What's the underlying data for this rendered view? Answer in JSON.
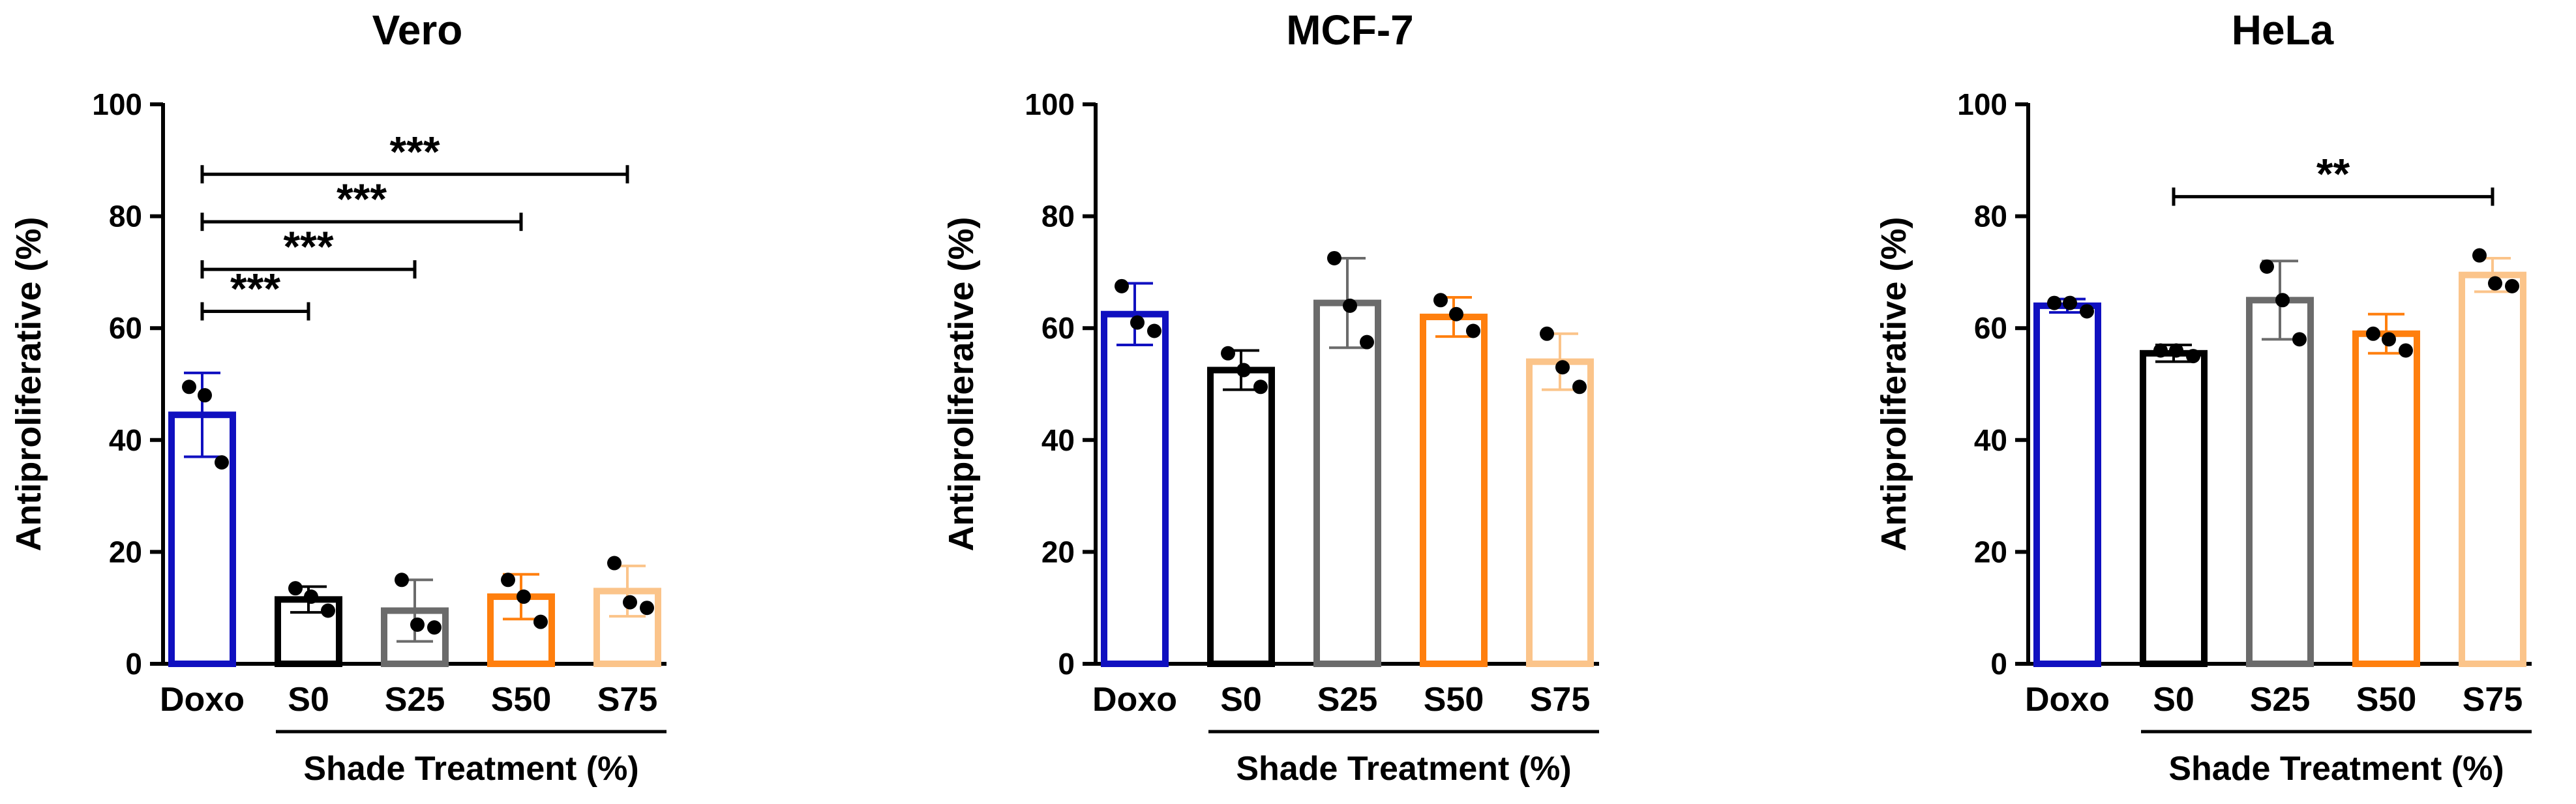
{
  "chart_data": [
    {
      "type": "bar",
      "title": "Vero",
      "ylabel": "Antiproliferative (%)",
      "xlabel": "Shade Treatment (%)",
      "ylim": [
        0,
        100
      ],
      "yticks": [
        "0",
        "20",
        "40",
        "60",
        "80",
        "100"
      ],
      "categories": [
        "Doxo",
        "S0",
        "S25",
        "S50",
        "S75"
      ],
      "colors": [
        "#1010c0",
        "#000000",
        "#6b6b6b",
        "#ff7f0e",
        "#fbc48a"
      ],
      "values": [
        44.5,
        11.5,
        9.5,
        12,
        13
      ],
      "errors": [
        7.5,
        2.3,
        5.5,
        4,
        4.5
      ],
      "points": [
        [
          49.5,
          48,
          36
        ],
        [
          13.5,
          12,
          9.5
        ],
        [
          15,
          7,
          6.5
        ],
        [
          15,
          12,
          7.5
        ],
        [
          18,
          11,
          10
        ]
      ],
      "significance": [
        {
          "from": 0,
          "to": 1,
          "label": "***",
          "y": 63
        },
        {
          "from": 0,
          "to": 2,
          "label": "***",
          "y": 70.5
        },
        {
          "from": 0,
          "to": 3,
          "label": "***",
          "y": 79
        },
        {
          "from": 0,
          "to": 4,
          "label": "***",
          "y": 87.5
        }
      ]
    },
    {
      "type": "bar",
      "title": "MCF-7",
      "ylabel": "Antiproliferative (%)",
      "xlabel": "Shade Treatment (%)",
      "ylim": [
        0,
        100
      ],
      "yticks": [
        "0",
        "20",
        "40",
        "60",
        "80",
        "100"
      ],
      "categories": [
        "Doxo",
        "S0",
        "S25",
        "S50",
        "S75"
      ],
      "colors": [
        "#1010c0",
        "#000000",
        "#6b6b6b",
        "#ff7f0e",
        "#fbc48a"
      ],
      "values": [
        62.5,
        52.5,
        64.5,
        62,
        54
      ],
      "errors": [
        5.5,
        3.5,
        8,
        3.5,
        5
      ],
      "points": [
        [
          67.5,
          61,
          59.5
        ],
        [
          55.5,
          52.5,
          49.5
        ],
        [
          72.5,
          64,
          57.5
        ],
        [
          65,
          62.5,
          59.5
        ],
        [
          59,
          53,
          49.5
        ]
      ],
      "significance": []
    },
    {
      "type": "bar",
      "title": "HeLa",
      "ylabel": "Antiproliferative (%)",
      "xlabel": "Shade Treatment (%)",
      "ylim": [
        0,
        100
      ],
      "yticks": [
        "0",
        "20",
        "40",
        "60",
        "80",
        "100"
      ],
      "categories": [
        "Doxo",
        "S0",
        "S25",
        "S50",
        "S75"
      ],
      "colors": [
        "#1010c0",
        "#000000",
        "#6b6b6b",
        "#ff7f0e",
        "#fbc48a"
      ],
      "values": [
        64,
        55.5,
        65,
        59,
        69.5
      ],
      "errors": [
        1.2,
        1.5,
        7,
        3.5,
        3
      ],
      "points": [
        [
          64.5,
          64.5,
          63
        ],
        [
          56,
          56,
          55
        ],
        [
          71,
          65,
          58
        ],
        [
          59,
          58,
          56
        ],
        [
          73,
          68,
          67.5
        ]
      ],
      "significance": [
        {
          "from": 1,
          "to": 4,
          "label": "**",
          "y": 83.5
        }
      ]
    }
  ]
}
